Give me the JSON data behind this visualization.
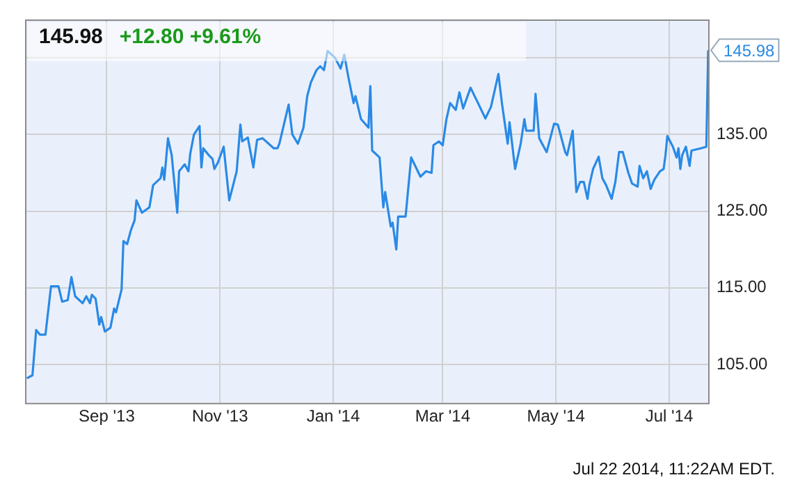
{
  "chart_data": {
    "type": "line",
    "title": "145.98",
    "subtitle": "+12.80  +9.61%",
    "annotations": [
      {
        "text": "145.98",
        "x": "2014-07-22",
        "y": 145.98
      },
      "Jul 22 2014, 11:22AM EDT."
    ],
    "xlim": [
      "2013-07-19",
      "2014-07-22"
    ],
    "xticks": [
      {
        "value": "2013-09-01",
        "label": "Sep '13"
      },
      {
        "value": "2013-11-01",
        "label": "Nov '13"
      },
      {
        "value": "2014-01-01",
        "label": "Jan '14"
      },
      {
        "value": "2014-03-01",
        "label": "Mar '14"
      },
      {
        "value": "2014-05-01",
        "label": "May '14"
      },
      {
        "value": "2014-07-01",
        "label": "Jul '14"
      }
    ],
    "ylim": [
      100,
      150
    ],
    "yticks": [
      {
        "value": 105,
        "label": "105.00"
      },
      {
        "value": 115,
        "label": "115.00"
      },
      {
        "value": 125,
        "label": "125.00"
      },
      {
        "value": 135,
        "label": "135.00"
      },
      {
        "value": 145,
        "label": null
      }
    ],
    "grid": true,
    "legend": false,
    "marker": "none",
    "line_style": "solid",
    "series": [
      {
        "color": "#2a8ae6",
        "x": [
          "2013-07-20",
          "2013-07-23",
          "2013-07-25",
          "2013-07-27",
          "2013-07-30",
          "2013-08-02",
          "2013-08-06",
          "2013-08-08",
          "2013-08-11",
          "2013-08-13",
          "2013-08-15",
          "2013-08-19",
          "2013-08-21",
          "2013-08-23",
          "2013-08-24",
          "2013-08-26",
          "2013-08-28",
          "2013-08-29",
          "2013-08-31",
          "2013-09-03",
          "2013-09-05",
          "2013-09-06",
          "2013-09-09",
          "2013-09-10",
          "2013-09-12",
          "2013-09-14",
          "2013-09-16",
          "2013-09-17",
          "2013-09-20",
          "2013-09-24",
          "2013-09-26",
          "2013-09-30",
          "2013-10-01",
          "2013-10-02",
          "2013-10-04",
          "2013-10-06",
          "2013-10-09",
          "2013-10-10",
          "2013-10-13",
          "2013-10-15",
          "2013-10-16",
          "2013-10-18",
          "2013-10-21",
          "2013-10-22",
          "2013-10-23",
          "2013-10-26",
          "2013-10-28",
          "2013-10-29",
          "2013-10-31",
          "2013-11-03",
          "2013-11-06",
          "2013-11-10",
          "2013-11-12",
          "2013-11-13",
          "2013-11-16",
          "2013-11-19",
          "2013-11-21",
          "2013-11-24",
          "2013-11-30",
          "2013-12-02",
          "2013-12-03",
          "2013-12-08",
          "2013-12-10",
          "2013-12-13",
          "2013-12-16",
          "2013-12-18",
          "2013-12-20",
          "2013-12-23",
          "2013-12-25",
          "2013-12-27",
          "2013-12-29",
          "2014-01-02",
          "2014-01-05",
          "2014-01-07",
          "2014-01-09",
          "2014-01-12",
          "2014-01-13",
          "2014-01-16",
          "2014-01-20",
          "2014-01-21",
          "2014-01-22",
          "2014-01-26",
          "2014-01-28",
          "2014-01-29",
          "2014-02-01",
          "2014-02-02",
          "2014-02-04",
          "2014-02-05",
          "2014-02-09",
          "2014-02-12",
          "2014-02-17",
          "2014-02-20",
          "2014-02-23",
          "2014-02-24",
          "2014-02-27",
          "2014-03-01",
          "2014-03-03",
          "2014-03-05",
          "2014-03-08",
          "2014-03-10",
          "2014-03-12",
          "2014-03-16",
          "2014-03-20",
          "2014-03-24",
          "2014-03-27",
          "2014-03-31",
          "2014-04-02",
          "2014-04-05",
          "2014-04-06",
          "2014-04-09",
          "2014-04-12",
          "2014-04-14",
          "2014-04-15",
          "2014-04-19",
          "2014-04-20",
          "2014-04-22",
          "2014-04-26",
          "2014-04-30",
          "2014-05-02",
          "2014-05-06",
          "2014-05-07",
          "2014-05-10",
          "2014-05-12",
          "2014-05-14",
          "2014-05-16",
          "2014-05-18",
          "2014-05-19",
          "2014-05-21",
          "2014-05-24",
          "2014-05-26",
          "2014-05-28",
          "2014-05-31",
          "2014-06-02",
          "2014-06-04",
          "2014-06-06",
          "2014-06-09",
          "2014-06-11",
          "2014-06-14",
          "2014-06-15",
          "2014-06-17",
          "2014-06-19",
          "2014-06-21",
          "2014-06-23",
          "2014-06-26",
          "2014-06-28",
          "2014-06-29",
          "2014-06-30",
          "2014-07-03",
          "2014-07-05",
          "2014-07-06",
          "2014-07-07",
          "2014-07-08",
          "2014-07-10",
          "2014-07-12",
          "2014-07-13",
          "2014-07-18",
          "2014-07-21",
          "2014-07-22"
        ],
        "values": [
          103.2,
          103.6,
          109.5,
          108.9,
          108.9,
          115.2,
          115.2,
          113.2,
          113.4,
          116.4,
          113.9,
          113.0,
          113.9,
          113.0,
          114.1,
          113.6,
          110.2,
          111.2,
          109.3,
          109.8,
          112.3,
          111.8,
          114.8,
          121.1,
          120.7,
          122.5,
          123.8,
          126.4,
          124.8,
          125.5,
          128.4,
          129.3,
          130.7,
          129.1,
          134.5,
          132.3,
          124.8,
          130.2,
          131.1,
          130.2,
          132.5,
          135.0,
          136.1,
          130.7,
          133.2,
          132.3,
          131.8,
          130.5,
          131.4,
          133.4,
          126.4,
          130.2,
          136.3,
          134.1,
          134.6,
          130.7,
          134.3,
          134.5,
          133.2,
          133.2,
          133.8,
          138.9,
          135.0,
          133.8,
          135.9,
          140.0,
          141.8,
          143.4,
          143.9,
          143.4,
          145.9,
          145.0,
          143.6,
          145.4,
          142.7,
          139.1,
          140.0,
          137.0,
          135.9,
          141.3,
          132.9,
          132.0,
          125.5,
          127.5,
          123.0,
          123.5,
          120.0,
          124.3,
          124.3,
          132.0,
          129.5,
          130.2,
          130.0,
          133.6,
          134.1,
          133.6,
          137.0,
          139.1,
          138.2,
          140.5,
          138.4,
          141.1,
          139.1,
          137.1,
          138.6,
          142.9,
          138.9,
          133.8,
          136.6,
          130.5,
          133.8,
          137.0,
          135.5,
          135.5,
          140.3,
          134.5,
          132.7,
          136.4,
          136.3,
          132.7,
          132.3,
          135.5,
          127.5,
          128.8,
          128.8,
          126.6,
          128.4,
          130.5,
          132.1,
          129.3,
          128.4,
          126.6,
          128.8,
          132.7,
          132.7,
          130.0,
          128.6,
          128.2,
          130.9,
          129.3,
          130.2,
          127.9,
          129.1,
          130.2,
          130.5,
          132.3,
          134.8,
          133.4,
          132.0,
          133.2,
          130.5,
          132.3,
          133.4,
          130.9,
          132.9,
          133.2,
          133.4,
          145.98
        ]
      }
    ]
  }
}
